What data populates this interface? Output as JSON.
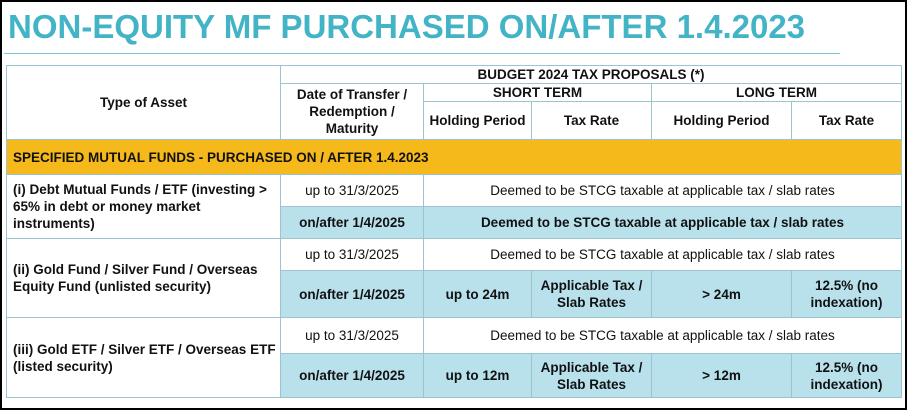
{
  "title": "NON-EQUITY MF PURCHASED ON/AFTER 1.4.2023",
  "header": {
    "type_of_asset": "Type of Asset",
    "budget": "BUDGET 2024 TAX PROPOSALS (*)",
    "date_col": "Date of Transfer / Redemption / Maturity",
    "short_term": "SHORT TERM",
    "long_term": "LONG TERM",
    "holding_period": "Holding Period",
    "tax_rate": "Tax Rate"
  },
  "section_label": "SPECIFIED MUTUAL FUNDS - PURCHASED ON / AFTER 1.4.2023",
  "rows": [
    {
      "asset": "(i) Debt Mutual Funds / ETF (investing > 65% in debt or money market instruments)",
      "r1_date": "up to 31/3/2025",
      "r1_text": "Deemed to be STCG taxable at applicable tax / slab rates",
      "r2_date": "on/after 1/4/2025",
      "r2_text": "Deemed to be STCG taxable at applicable tax / slab rates"
    },
    {
      "asset": "(ii) Gold Fund / Silver Fund / Overseas Equity Fund (unlisted security)",
      "r1_date": "up to 31/3/2025",
      "r1_text": "Deemed to be STCG taxable at applicable tax / slab rates",
      "r2_date": "on/after 1/4/2025",
      "st_holding": "up to 24m",
      "st_rate": "Applicable Tax / Slab Rates",
      "lt_holding": "> 24m",
      "lt_rate": "12.5% (no indexation)"
    },
    {
      "asset": "(iii) Gold ETF / Silver ETF / Overseas ETF (listed security)",
      "r1_date": "up to 31/3/2025",
      "r1_text": "Deemed to be STCG taxable at applicable tax / slab rates",
      "r2_date": "on/after 1/4/2025",
      "st_holding": "up to 12m",
      "st_rate": "Applicable Tax / Slab Rates",
      "lt_holding": "> 12m",
      "lt_rate": "12.5% (no indexation)"
    }
  ],
  "colors": {
    "title": "#43b3c6",
    "section": "#f5b91b",
    "highlight_row": "#b8e1ec"
  }
}
